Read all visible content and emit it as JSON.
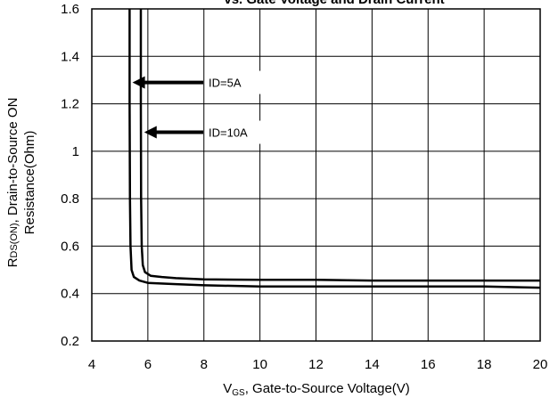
{
  "chart_data": {
    "type": "line",
    "title": "vs. Gate Voltage and Drain Current",
    "xlabel": {
      "main": "V",
      "sub": "GS",
      "rest": ", Gate-to-Source Voltage(V)"
    },
    "ylabel": {
      "line1_main": "R",
      "line1_sub": "DS(ON)",
      "line1_rest": ", Drain-to-Source ON",
      "line2": "Resistance(Ohm)"
    },
    "xlim": [
      4,
      20
    ],
    "ylim": [
      0.2,
      1.6
    ],
    "xticks": [
      "4",
      "6",
      "8",
      "10",
      "12",
      "14",
      "16",
      "18",
      "20"
    ],
    "yticks": [
      "0.2",
      "0.4",
      "0.6",
      "0.8",
      "1",
      "1.2",
      "1.4",
      "1.6"
    ],
    "grid": true,
    "annotations": [
      {
        "text": "ID=5A",
        "x": 5.45,
        "y": 1.29
      },
      {
        "text": "ID=10A",
        "x": 5.87,
        "y": 1.08
      }
    ],
    "series": [
      {
        "label": "ID=5A",
        "x": [
          5.35,
          5.35,
          5.36,
          5.38,
          5.42,
          5.5,
          5.7,
          6.0,
          7.0,
          8.0,
          10,
          12,
          14,
          16,
          18,
          20
        ],
        "y": [
          1.6,
          1.2,
          0.8,
          0.6,
          0.5,
          0.47,
          0.455,
          0.445,
          0.44,
          0.435,
          0.43,
          0.43,
          0.43,
          0.43,
          0.43,
          0.425
        ]
      },
      {
        "label": "ID=10A",
        "x": [
          5.75,
          5.75,
          5.76,
          5.78,
          5.82,
          5.9,
          6.1,
          6.5,
          7.0,
          8.0,
          10,
          12,
          14,
          16,
          18,
          20
        ],
        "y": [
          1.6,
          1.2,
          0.8,
          0.6,
          0.52,
          0.49,
          0.475,
          0.47,
          0.465,
          0.46,
          0.458,
          0.458,
          0.455,
          0.455,
          0.455,
          0.455
        ]
      }
    ]
  }
}
